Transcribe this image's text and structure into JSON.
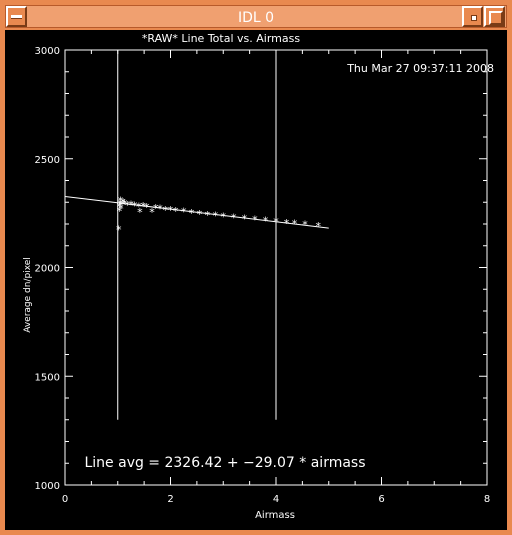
{
  "window": {
    "title": "IDL 0",
    "menu_icon": "window-menu-icon",
    "minimize_icon": "minimize-icon",
    "maximize_icon": "maximize-icon",
    "frame_color": "#e9894f"
  },
  "plot": {
    "timestamp": "Thu Mar 27 09:37:11 2008",
    "fit_text": "Line avg = 2326.42 + −29.07 * airmass"
  },
  "chart_data": {
    "type": "scatter",
    "title": "*RAW* Line Total vs. Airmass",
    "xlabel": "Airmass",
    "ylabel": "Average dn/pixel",
    "xlim": [
      0,
      8
    ],
    "ylim": [
      1000,
      3000
    ],
    "xticks": [
      0,
      2,
      4,
      6,
      8
    ],
    "yticks": [
      1000,
      1500,
      2000,
      2500,
      3000
    ],
    "points": [
      [
        1.02,
        2180
      ],
      [
        1.03,
        2265
      ],
      [
        1.03,
        2285
      ],
      [
        1.04,
        2300
      ],
      [
        1.05,
        2312
      ],
      [
        1.06,
        2275
      ],
      [
        1.08,
        2295
      ],
      [
        1.1,
        2305
      ],
      [
        1.13,
        2300
      ],
      [
        1.18,
        2292
      ],
      [
        1.25,
        2295
      ],
      [
        1.32,
        2290
      ],
      [
        1.4,
        2285
      ],
      [
        1.48,
        2288
      ],
      [
        1.55,
        2282
      ],
      [
        1.42,
        2260
      ],
      [
        1.65,
        2260
      ],
      [
        1.72,
        2278
      ],
      [
        1.8,
        2275
      ],
      [
        1.9,
        2270
      ],
      [
        2.0,
        2270
      ],
      [
        2.1,
        2265
      ],
      [
        2.25,
        2262
      ],
      [
        2.4,
        2255
      ],
      [
        2.55,
        2250
      ],
      [
        2.7,
        2247
      ],
      [
        2.85,
        2243
      ],
      [
        3.0,
        2238
      ],
      [
        3.2,
        2235
      ],
      [
        3.4,
        2230
      ],
      [
        3.6,
        2225
      ],
      [
        3.8,
        2220
      ],
      [
        4.0,
        2215
      ],
      [
        4.2,
        2210
      ],
      [
        4.35,
        2208
      ],
      [
        4.55,
        2202
      ],
      [
        4.8,
        2195
      ]
    ],
    "fit": {
      "intercept": 2326.42,
      "slope": -29.07,
      "x_range": [
        0,
        5
      ]
    },
    "vertical_lines": {
      "x": [
        1,
        4
      ],
      "y_range": [
        1300,
        3000
      ]
    }
  }
}
